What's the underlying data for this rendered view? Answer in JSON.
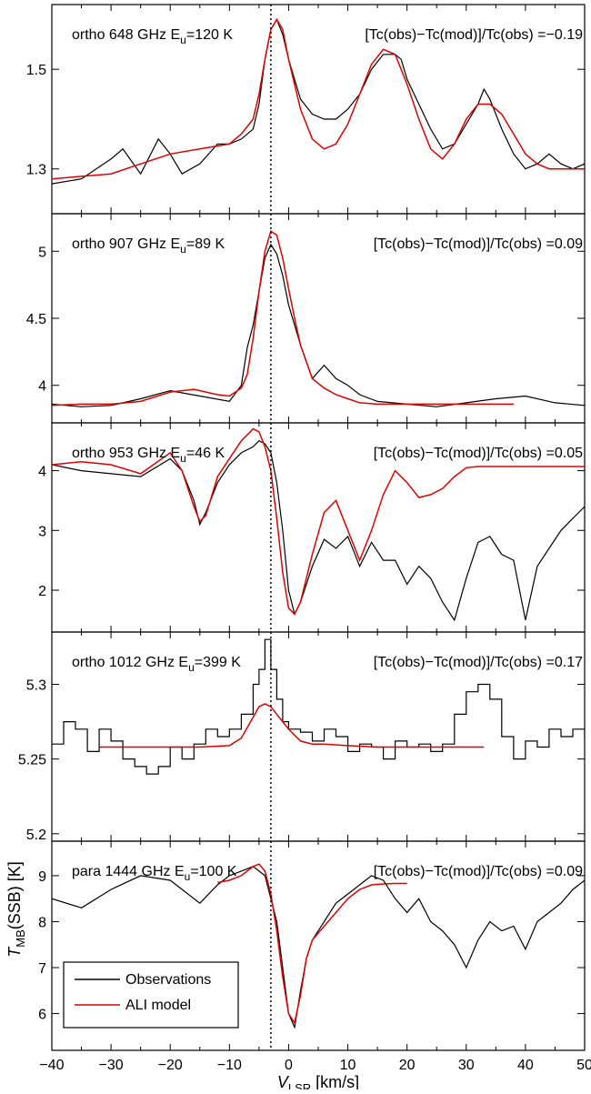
{
  "chart_data": {
    "type": "line",
    "layout": "stacked panels sharing x axis",
    "xlabel_main": "V",
    "xlabel_sub": "LSR",
    "xlabel_unit": " [km/s]",
    "ylabel_main": "T",
    "ylabel_sub": "MB",
    "ylabel_unit": "(SSB) [K]",
    "xlim": [
      -40,
      50
    ],
    "xticks": [
      -40,
      -30,
      -20,
      -10,
      0,
      10,
      20,
      30,
      40,
      50
    ],
    "xtick_labels": [
      "−40",
      "−30",
      "−20",
      "−10",
      "0",
      "10",
      "20",
      "30",
      "40",
      "50"
    ],
    "reference_line_x": -3,
    "legend": {
      "placement": "bottom-left of last panel",
      "entries": [
        {
          "label": "Observations",
          "color": "#000000"
        },
        {
          "label": "ALI model",
          "color": "#e00000"
        }
      ]
    },
    "series_colors": {
      "observations": "#000000",
      "model": "#e00000"
    },
    "panels": [
      {
        "label_pre": "ortho 648 GHz E",
        "label_sub": "u",
        "label_post": "=120 K",
        "ratio_label": "[Tc(obs)−Tc(mod)]/Tc(obs) =−0.19",
        "ylim": [
          1.21,
          1.63
        ],
        "yticks": [
          1.3,
          1.5
        ],
        "ytick_labels": [
          "1.3",
          "1.5"
        ],
        "obs": {
          "x": [
            -40,
            -35,
            -30,
            -28,
            -25,
            -22,
            -20,
            -18,
            -15,
            -12,
            -10,
            -8,
            -6,
            -5,
            -4,
            -3,
            -2,
            -1,
            0,
            2,
            4,
            6,
            8,
            10,
            12,
            14,
            16,
            18,
            19,
            20,
            22,
            24,
            26,
            28,
            30,
            32,
            33,
            34,
            36,
            38,
            40,
            42,
            44,
            46,
            48,
            50
          ],
          "y": [
            1.27,
            1.28,
            1.32,
            1.34,
            1.29,
            1.36,
            1.33,
            1.29,
            1.31,
            1.35,
            1.35,
            1.36,
            1.38,
            1.43,
            1.52,
            1.58,
            1.6,
            1.57,
            1.52,
            1.44,
            1.41,
            1.4,
            1.4,
            1.42,
            1.45,
            1.5,
            1.53,
            1.53,
            1.52,
            1.48,
            1.43,
            1.38,
            1.34,
            1.35,
            1.39,
            1.43,
            1.46,
            1.44,
            1.38,
            1.33,
            1.3,
            1.31,
            1.33,
            1.31,
            1.3,
            1.31
          ]
        },
        "model": {
          "x": [
            -40,
            -35,
            -30,
            -25,
            -20,
            -15,
            -10,
            -8,
            -6,
            -5,
            -4,
            -3,
            -2,
            -1,
            0,
            2,
            4,
            6,
            8,
            10,
            12,
            14,
            16,
            18,
            20,
            22,
            24,
            26,
            28,
            30,
            32,
            34,
            36,
            38,
            40,
            42,
            44,
            46,
            48,
            50
          ],
          "y": [
            1.28,
            1.285,
            1.29,
            1.31,
            1.33,
            1.34,
            1.35,
            1.37,
            1.4,
            1.45,
            1.52,
            1.58,
            1.6,
            1.58,
            1.52,
            1.42,
            1.36,
            1.34,
            1.35,
            1.39,
            1.45,
            1.51,
            1.54,
            1.53,
            1.47,
            1.4,
            1.34,
            1.32,
            1.35,
            1.4,
            1.43,
            1.43,
            1.41,
            1.37,
            1.33,
            1.31,
            1.3,
            1.3,
            1.3,
            1.3
          ]
        }
      },
      {
        "label_pre": "ortho 907 GHz E",
        "label_sub": "u",
        "label_post": "=89 K",
        "ratio_label": "[Tc(obs)−Tc(mod)]/Tc(obs) =0.09",
        "ylim": [
          3.72,
          5.28
        ],
        "yticks": [
          4.0,
          4.5,
          5.0
        ],
        "ytick_labels": [
          "4",
          "4.5",
          "5"
        ],
        "obs": {
          "x": [
            -40,
            -35,
            -30,
            -25,
            -20,
            -15,
            -10,
            -8,
            -7,
            -6,
            -5,
            -4,
            -3,
            -2,
            -1,
            0,
            1,
            2,
            4,
            6,
            8,
            10,
            12,
            15,
            20,
            25,
            30,
            35,
            40,
            45,
            50
          ],
          "y": [
            3.86,
            3.84,
            3.85,
            3.9,
            3.96,
            3.92,
            3.88,
            4.0,
            4.28,
            4.45,
            4.7,
            4.95,
            5.05,
            4.98,
            4.82,
            4.6,
            4.45,
            4.3,
            4.05,
            4.15,
            4.05,
            4.0,
            3.93,
            3.88,
            3.86,
            3.84,
            3.87,
            3.9,
            3.92,
            3.87,
            3.85
          ]
        },
        "model": {
          "x": [
            -40,
            -35,
            -30,
            -25,
            -20,
            -16,
            -12,
            -10,
            -8,
            -7,
            -6,
            -5,
            -4,
            -3,
            -2,
            -1,
            0,
            1,
            2,
            4,
            6,
            8,
            10,
            12,
            15,
            20,
            30,
            38
          ],
          "y": [
            3.85,
            3.86,
            3.86,
            3.88,
            3.95,
            3.97,
            3.93,
            3.92,
            3.98,
            4.08,
            4.35,
            4.7,
            5.0,
            5.15,
            5.12,
            4.95,
            4.72,
            4.5,
            4.3,
            4.05,
            3.98,
            3.93,
            3.9,
            3.87,
            3.86,
            3.86,
            3.86,
            3.86
          ]
        }
      },
      {
        "label_pre": "ortho 953 GHz E",
        "label_sub": "u",
        "label_post": "=46 K",
        "ratio_label": "[Tc(obs)−Tc(mod)]/Tc(obs) =0.05",
        "ylim": [
          1.3,
          4.8
        ],
        "yticks": [
          2,
          3,
          4
        ],
        "ytick_labels": [
          "2",
          "3",
          "4"
        ],
        "obs": {
          "x": [
            -40,
            -35,
            -30,
            -25,
            -20,
            -18,
            -16,
            -15,
            -14,
            -12,
            -10,
            -8,
            -6,
            -5,
            -4,
            -3,
            -2,
            -1,
            0,
            1,
            2,
            4,
            6,
            8,
            10,
            12,
            14,
            16,
            18,
            20,
            22,
            24,
            26,
            28,
            30,
            32,
            34,
            36,
            38,
            40,
            42,
            44,
            46,
            48,
            50
          ],
          "y": [
            4.1,
            4.0,
            3.95,
            3.9,
            4.2,
            4.0,
            3.5,
            3.1,
            3.3,
            3.8,
            4.1,
            4.3,
            4.4,
            4.5,
            4.45,
            4.3,
            3.8,
            3.0,
            2.0,
            1.6,
            1.8,
            2.4,
            2.85,
            2.7,
            2.9,
            2.4,
            2.8,
            2.5,
            2.5,
            2.1,
            2.4,
            2.2,
            1.8,
            1.5,
            2.2,
            2.8,
            2.9,
            2.6,
            2.5,
            1.5,
            2.4,
            2.7,
            3.0,
            3.2,
            3.4
          ]
        },
        "model": {
          "x": [
            -40,
            -35,
            -30,
            -25,
            -20,
            -18,
            -16,
            -15,
            -14,
            -12,
            -10,
            -8,
            -6,
            -5,
            -4,
            -3,
            -2,
            -1,
            0,
            1,
            2,
            4,
            6,
            8,
            10,
            12,
            14,
            16,
            18,
            20,
            22,
            24,
            26,
            28,
            30,
            32,
            35,
            40,
            45,
            50
          ],
          "y": [
            4.1,
            4.15,
            4.1,
            3.95,
            4.3,
            4.0,
            3.4,
            3.15,
            3.25,
            3.9,
            4.2,
            4.5,
            4.7,
            4.65,
            4.4,
            4.0,
            3.2,
            2.3,
            1.7,
            1.6,
            1.8,
            2.6,
            3.3,
            3.5,
            3.0,
            2.5,
            3.0,
            3.6,
            4.0,
            3.8,
            3.55,
            3.6,
            3.7,
            3.9,
            4.05,
            4.07,
            4.07,
            4.07,
            4.07,
            4.07
          ]
        }
      },
      {
        "label_pre": "ortho 1012 GHz E",
        "label_sub": "u",
        "label_post": "=399 K",
        "ratio_label": "[Tc(obs)−Tc(mod)]/Tc(obs) =0.17",
        "ylim": [
          5.195,
          5.335
        ],
        "yticks": [
          5.2,
          5.25,
          5.3
        ],
        "ytick_labels": [
          "5.2",
          "5.25",
          "5.3"
        ],
        "step": true,
        "obs": {
          "x": [
            -40,
            -38,
            -36,
            -34,
            -32,
            -30,
            -28,
            -26,
            -24,
            -22,
            -20,
            -18,
            -16,
            -14,
            -12,
            -10,
            -8,
            -6,
            -5,
            -4,
            -3,
            -2,
            -1,
            0,
            2,
            4,
            6,
            8,
            10,
            12,
            14,
            16,
            18,
            20,
            22,
            24,
            26,
            28,
            30,
            32,
            34,
            36,
            38,
            40,
            42,
            44,
            46,
            48,
            50
          ],
          "y": [
            5.26,
            5.275,
            5.27,
            5.255,
            5.27,
            5.262,
            5.25,
            5.245,
            5.24,
            5.245,
            5.258,
            5.25,
            5.26,
            5.27,
            5.265,
            5.27,
            5.28,
            5.3,
            5.31,
            5.33,
            5.31,
            5.29,
            5.275,
            5.27,
            5.268,
            5.262,
            5.27,
            5.265,
            5.255,
            5.26,
            5.258,
            5.25,
            5.262,
            5.258,
            5.26,
            5.255,
            5.26,
            5.28,
            5.295,
            5.3,
            5.29,
            5.265,
            5.25,
            5.262,
            5.258,
            5.27,
            5.265,
            5.27,
            5.265
          ]
        },
        "model": {
          "x": [
            -32,
            -25,
            -20,
            -15,
            -10,
            -8,
            -6,
            -5,
            -4,
            -3,
            -2,
            -1,
            0,
            2,
            4,
            6,
            10,
            15,
            20,
            25,
            30,
            33
          ],
          "y": [
            5.258,
            5.258,
            5.258,
            5.258,
            5.259,
            5.264,
            5.278,
            5.285,
            5.287,
            5.285,
            5.28,
            5.275,
            5.27,
            5.262,
            5.26,
            5.26,
            5.259,
            5.258,
            5.258,
            5.258,
            5.258,
            5.258
          ]
        }
      },
      {
        "label_pre": "para 1444 GHz E",
        "label_sub": "u",
        "label_post": "=100 K",
        "ratio_label": "[Tc(obs)−Tc(mod)]/Tc(obs) =0.09",
        "ylim": [
          5.2,
          9.75
        ],
        "yticks": [
          6,
          7,
          8,
          9
        ],
        "ytick_labels": [
          "6",
          "7",
          "8",
          "9"
        ],
        "obs": {
          "x": [
            -40,
            -35,
            -30,
            -25,
            -20,
            -15,
            -12,
            -10,
            -8,
            -6,
            -4,
            -3,
            -2,
            -1,
            0,
            1,
            2,
            3,
            4,
            6,
            8,
            10,
            12,
            14,
            16,
            18,
            20,
            22,
            24,
            26,
            28,
            30,
            32,
            34,
            36,
            38,
            40,
            42,
            44,
            46,
            48,
            50
          ],
          "y": [
            8.5,
            8.3,
            8.7,
            9.0,
            8.9,
            8.4,
            8.8,
            9.0,
            9.1,
            9.2,
            9.0,
            8.5,
            8.0,
            7.0,
            6.0,
            5.7,
            6.5,
            7.2,
            7.6,
            8.0,
            8.4,
            8.6,
            8.8,
            9.0,
            8.9,
            8.5,
            8.2,
            8.5,
            8.0,
            7.8,
            7.5,
            7.0,
            7.6,
            8.0,
            7.8,
            7.9,
            7.4,
            8.0,
            8.2,
            8.4,
            8.7,
            8.9
          ]
        },
        "model": {
          "x": [
            -12,
            -10,
            -8,
            -6,
            -5,
            -4,
            -3,
            -2,
            -1,
            0,
            1,
            2,
            3,
            4,
            6,
            8,
            10,
            12,
            14,
            16,
            18,
            20
          ],
          "y": [
            8.85,
            8.9,
            9.0,
            9.2,
            9.25,
            9.1,
            8.6,
            7.8,
            6.8,
            6.0,
            5.8,
            6.4,
            7.2,
            7.6,
            7.9,
            8.2,
            8.5,
            8.7,
            8.8,
            8.82,
            8.83,
            8.83
          ]
        }
      }
    ]
  }
}
